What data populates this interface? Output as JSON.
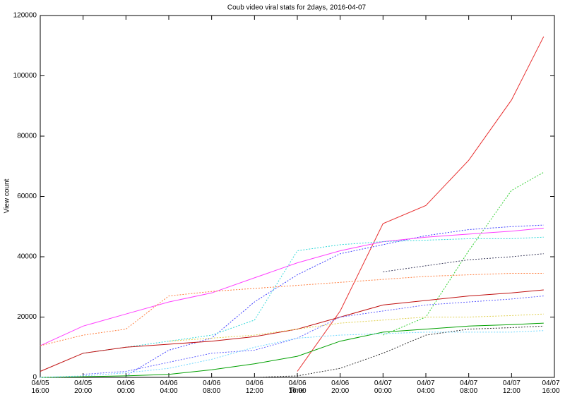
{
  "chart_data": {
    "type": "line",
    "title": "Coub video viral stats for 2days, 2016-04-07",
    "xlabel": "Time",
    "ylabel": "View count",
    "x": [
      "04/05 16:00",
      "04/05 20:00",
      "04/06 00:00",
      "04/06 04:00",
      "04/06 08:00",
      "04/06 12:00",
      "04/06 16:00",
      "04/06 20:00",
      "04/07 00:00",
      "04/07 04:00",
      "04/07 08:00",
      "04/07 12:00",
      "04/07 15:00"
    ],
    "xlim": [
      "04/05 16:00",
      "04/07 16:00"
    ],
    "xticks": [
      "04/05 16:00",
      "04/05 20:00",
      "04/06 00:00",
      "04/06 04:00",
      "04/06 08:00",
      "04/06 12:00",
      "04/06 16:00",
      "04/06 20:00",
      "04/07 00:00",
      "04/07 04:00",
      "04/07 08:00",
      "04/07 12:00",
      "04/07 16:00"
    ],
    "ylim": [
      0,
      120000
    ],
    "yticks": [
      0,
      20000,
      40000,
      60000,
      80000,
      100000,
      120000
    ],
    "grid": false,
    "legend": false,
    "series": [
      {
        "color": "#e83030",
        "dashed": false,
        "values": [
          null,
          null,
          null,
          null,
          null,
          null,
          2000,
          22000,
          51000,
          57000,
          72000,
          92000,
          113000
        ]
      },
      {
        "color": "#30d030",
        "dashed": true,
        "values": [
          null,
          null,
          null,
          null,
          null,
          null,
          null,
          null,
          14000,
          20000,
          42000,
          62000,
          68000
        ]
      },
      {
        "color": "#4040ff",
        "dashed": true,
        "values": [
          null,
          null,
          500,
          9000,
          13000,
          25000,
          34000,
          41000,
          44000,
          47000,
          49000,
          50000,
          50500
        ]
      },
      {
        "color": "#ff40ff",
        "dashed": false,
        "values": [
          10500,
          17000,
          21000,
          25000,
          28000,
          33000,
          38000,
          42000,
          45000,
          46500,
          47500,
          48500,
          49500
        ]
      },
      {
        "color": "#30d8d8",
        "dashed": true,
        "values": [
          null,
          8000,
          10000,
          12000,
          14000,
          19000,
          42000,
          44000,
          45000,
          45500,
          46000,
          46000,
          46500
        ]
      },
      {
        "color": "#404060",
        "dashed": true,
        "values": [
          null,
          null,
          null,
          null,
          null,
          null,
          null,
          null,
          35000,
          37000,
          39000,
          40000,
          41000
        ]
      },
      {
        "color": "#ff7f40",
        "dashed": true,
        "values": [
          10500,
          14000,
          16000,
          27000,
          28500,
          29500,
          30500,
          31500,
          32500,
          33500,
          34000,
          34500,
          34500
        ]
      },
      {
        "color": "#c01010",
        "dashed": false,
        "values": [
          2000,
          8000,
          10000,
          11000,
          12000,
          13500,
          16000,
          20000,
          24000,
          25500,
          27000,
          28000,
          29000
        ]
      },
      {
        "color": "#6060ff",
        "dashed": true,
        "values": [
          null,
          1000,
          2000,
          5000,
          8000,
          9000,
          13000,
          20000,
          22000,
          24000,
          25000,
          26000,
          27000
        ]
      },
      {
        "color": "#00a000",
        "dashed": false,
        "values": [
          0,
          200,
          500,
          1000,
          2500,
          4500,
          7000,
          12000,
          15000,
          16000,
          17000,
          17500,
          18000
        ]
      },
      {
        "color": "#303030",
        "dashed": true,
        "values": [
          null,
          null,
          null,
          null,
          null,
          0,
          500,
          3000,
          8000,
          14000,
          16000,
          16500,
          17000
        ]
      },
      {
        "color": "#e0d050",
        "dashed": true,
        "values": [
          null,
          null,
          null,
          12000,
          13000,
          14000,
          16000,
          18000,
          19000,
          20000,
          20000,
          20500,
          21000
        ]
      },
      {
        "color": "#70d8ff",
        "dashed": true,
        "values": [
          0,
          500,
          1500,
          3000,
          6000,
          10000,
          13000,
          14000,
          14500,
          15000,
          15000,
          15000,
          15500
        ]
      }
    ]
  }
}
